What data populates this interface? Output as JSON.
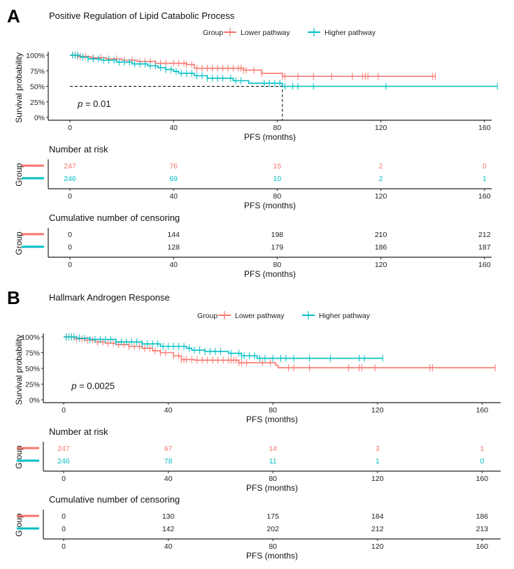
{
  "colors": {
    "lower": "#F8766D",
    "higher": "#00BFC4"
  },
  "chart_data": [
    {
      "type": "line",
      "panel_label": "A",
      "title": "Positive Regulation of Lipid Catabolic Process",
      "legend": {
        "title": "Group",
        "entries": [
          "Lower pathway",
          "Higher pathway"
        ],
        "placement": "top"
      },
      "xlabel": "PFS (months)",
      "ylabel": "Survival probability",
      "xlim": [
        0,
        165
      ],
      "ylim": [
        0,
        1
      ],
      "xticks": [
        0,
        40,
        80,
        120,
        160
      ],
      "yticks": [
        "0%",
        "25%",
        "50%",
        "75%",
        "100%"
      ],
      "pvalue": "= 0.01",
      "pvalue_prefix": "p",
      "median_line": {
        "time": 82,
        "surv": 0.5
      },
      "series": [
        {
          "name": "Lower pathway",
          "steps": [
            [
              0,
              1
            ],
            [
              3,
              0.98
            ],
            [
              8,
              0.96
            ],
            [
              14,
              0.94
            ],
            [
              20,
              0.92
            ],
            [
              26,
              0.9
            ],
            [
              33,
              0.87
            ],
            [
              45,
              0.85
            ],
            [
              48,
              0.79
            ],
            [
              67,
              0.76
            ],
            [
              74,
              0.71
            ],
            [
              82,
              0.66
            ],
            [
              141,
              0.66
            ]
          ],
          "censor": [
            1,
            2,
            3,
            4,
            6,
            9,
            12,
            15,
            18,
            21,
            24,
            27,
            29,
            31,
            33,
            35,
            37,
            40,
            42,
            44,
            45,
            47,
            49,
            51,
            53,
            55,
            57,
            59,
            61,
            63,
            65,
            66,
            67,
            68,
            71,
            74,
            82,
            83,
            88,
            94,
            101,
            109,
            113,
            114,
            115,
            119,
            140,
            141
          ]
        },
        {
          "name": "Higher pathway",
          "steps": [
            [
              0,
              1
            ],
            [
              4,
              0.97
            ],
            [
              7,
              0.94
            ],
            [
              12,
              0.92
            ],
            [
              18,
              0.89
            ],
            [
              24,
              0.86
            ],
            [
              30,
              0.83
            ],
            [
              34,
              0.8
            ],
            [
              37,
              0.77
            ],
            [
              40,
              0.74
            ],
            [
              42,
              0.71
            ],
            [
              48,
              0.67
            ],
            [
              53,
              0.63
            ],
            [
              63,
              0.59
            ],
            [
              69,
              0.55
            ],
            [
              82,
              0.5
            ],
            [
              165,
              0.5
            ]
          ],
          "censor": [
            1,
            2,
            3,
            5,
            7,
            9,
            11,
            13,
            15,
            17,
            19,
            21,
            23,
            25,
            27,
            29,
            31,
            33,
            35,
            37,
            39,
            41,
            43,
            45,
            47,
            49,
            51,
            53,
            55,
            57,
            59,
            62,
            64,
            66,
            75,
            77,
            79,
            81,
            83,
            86,
            88,
            94,
            122,
            165
          ]
        }
      ],
      "risk_table": {
        "title": "Number at risk",
        "ylabel": "Group",
        "rows": [
          [
            247,
            76,
            15,
            2,
            0
          ],
          [
            246,
            69,
            10,
            2,
            1
          ]
        ]
      },
      "censor_table": {
        "title": "Cumulative number of censoring",
        "ylabel": "Group",
        "rows": [
          [
            0,
            144,
            198,
            210,
            212
          ],
          [
            0,
            128,
            179,
            186,
            187
          ]
        ]
      }
    },
    {
      "type": "line",
      "panel_label": "B",
      "title": "Hallmark Androgen Response",
      "legend": {
        "title": "Group",
        "entries": [
          "Lower pathway",
          "Higher pathway"
        ],
        "placement": "top"
      },
      "xlabel": "PFS (months)",
      "ylabel": "Survival probability",
      "xlim": [
        0,
        165
      ],
      "ylim": [
        0,
        1
      ],
      "xticks": [
        0,
        40,
        80,
        120,
        160
      ],
      "yticks": [
        "0%",
        "25%",
        "50%",
        "75%",
        "100%"
      ],
      "pvalue": "= 0.0025",
      "pvalue_prefix": "p",
      "series": [
        {
          "name": "Lower pathway",
          "steps": [
            [
              0,
              1
            ],
            [
              4,
              0.97
            ],
            [
              8,
              0.95
            ],
            [
              12,
              0.92
            ],
            [
              16,
              0.9
            ],
            [
              20,
              0.88
            ],
            [
              25,
              0.85
            ],
            [
              30,
              0.82
            ],
            [
              34,
              0.78
            ],
            [
              37,
              0.75
            ],
            [
              42,
              0.7
            ],
            [
              45,
              0.64
            ],
            [
              50,
              0.63
            ],
            [
              67,
              0.59
            ],
            [
              81,
              0.55
            ],
            [
              82,
              0.51
            ],
            [
              165,
              0.51
            ]
          ],
          "censor": [
            1,
            2,
            3,
            5,
            7,
            9,
            11,
            13,
            15,
            17,
            19,
            21,
            23,
            25,
            27,
            29,
            31,
            33,
            35,
            37,
            39,
            42,
            44,
            45,
            46,
            47,
            49,
            51,
            53,
            55,
            57,
            59,
            61,
            63,
            64,
            65,
            66,
            67,
            68,
            70,
            76,
            79,
            86,
            88,
            94,
            109,
            113,
            114,
            119,
            140,
            141,
            165
          ]
        },
        {
          "name": "Higher pathway",
          "steps": [
            [
              0,
              1
            ],
            [
              5,
              0.98
            ],
            [
              10,
              0.96
            ],
            [
              20,
              0.92
            ],
            [
              30,
              0.89
            ],
            [
              37,
              0.85
            ],
            [
              47,
              0.82
            ],
            [
              49,
              0.79
            ],
            [
              54,
              0.77
            ],
            [
              63,
              0.74
            ],
            [
              68,
              0.7
            ],
            [
              74,
              0.66
            ],
            [
              122,
              0.66
            ]
          ],
          "censor": [
            1,
            2,
            3,
            4,
            6,
            8,
            10,
            12,
            14,
            16,
            18,
            20,
            22,
            24,
            26,
            28,
            30,
            32,
            34,
            36,
            38,
            40,
            42,
            44,
            46,
            48,
            50,
            52,
            54,
            56,
            58,
            60,
            64,
            67,
            68,
            69,
            71,
            73,
            75,
            77,
            80,
            83,
            85,
            88,
            94,
            102,
            113,
            115,
            122
          ]
        }
      ],
      "risk_table": {
        "title": "Number at risk",
        "ylabel": "Group",
        "rows": [
          [
            247,
            67,
            14,
            3,
            1
          ],
          [
            246,
            78,
            11,
            1,
            0
          ]
        ]
      },
      "censor_table": {
        "title": "Cumulative number of censoring",
        "ylabel": "Group",
        "rows": [
          [
            0,
            130,
            175,
            184,
            186
          ],
          [
            0,
            142,
            202,
            212,
            213
          ]
        ]
      }
    }
  ]
}
